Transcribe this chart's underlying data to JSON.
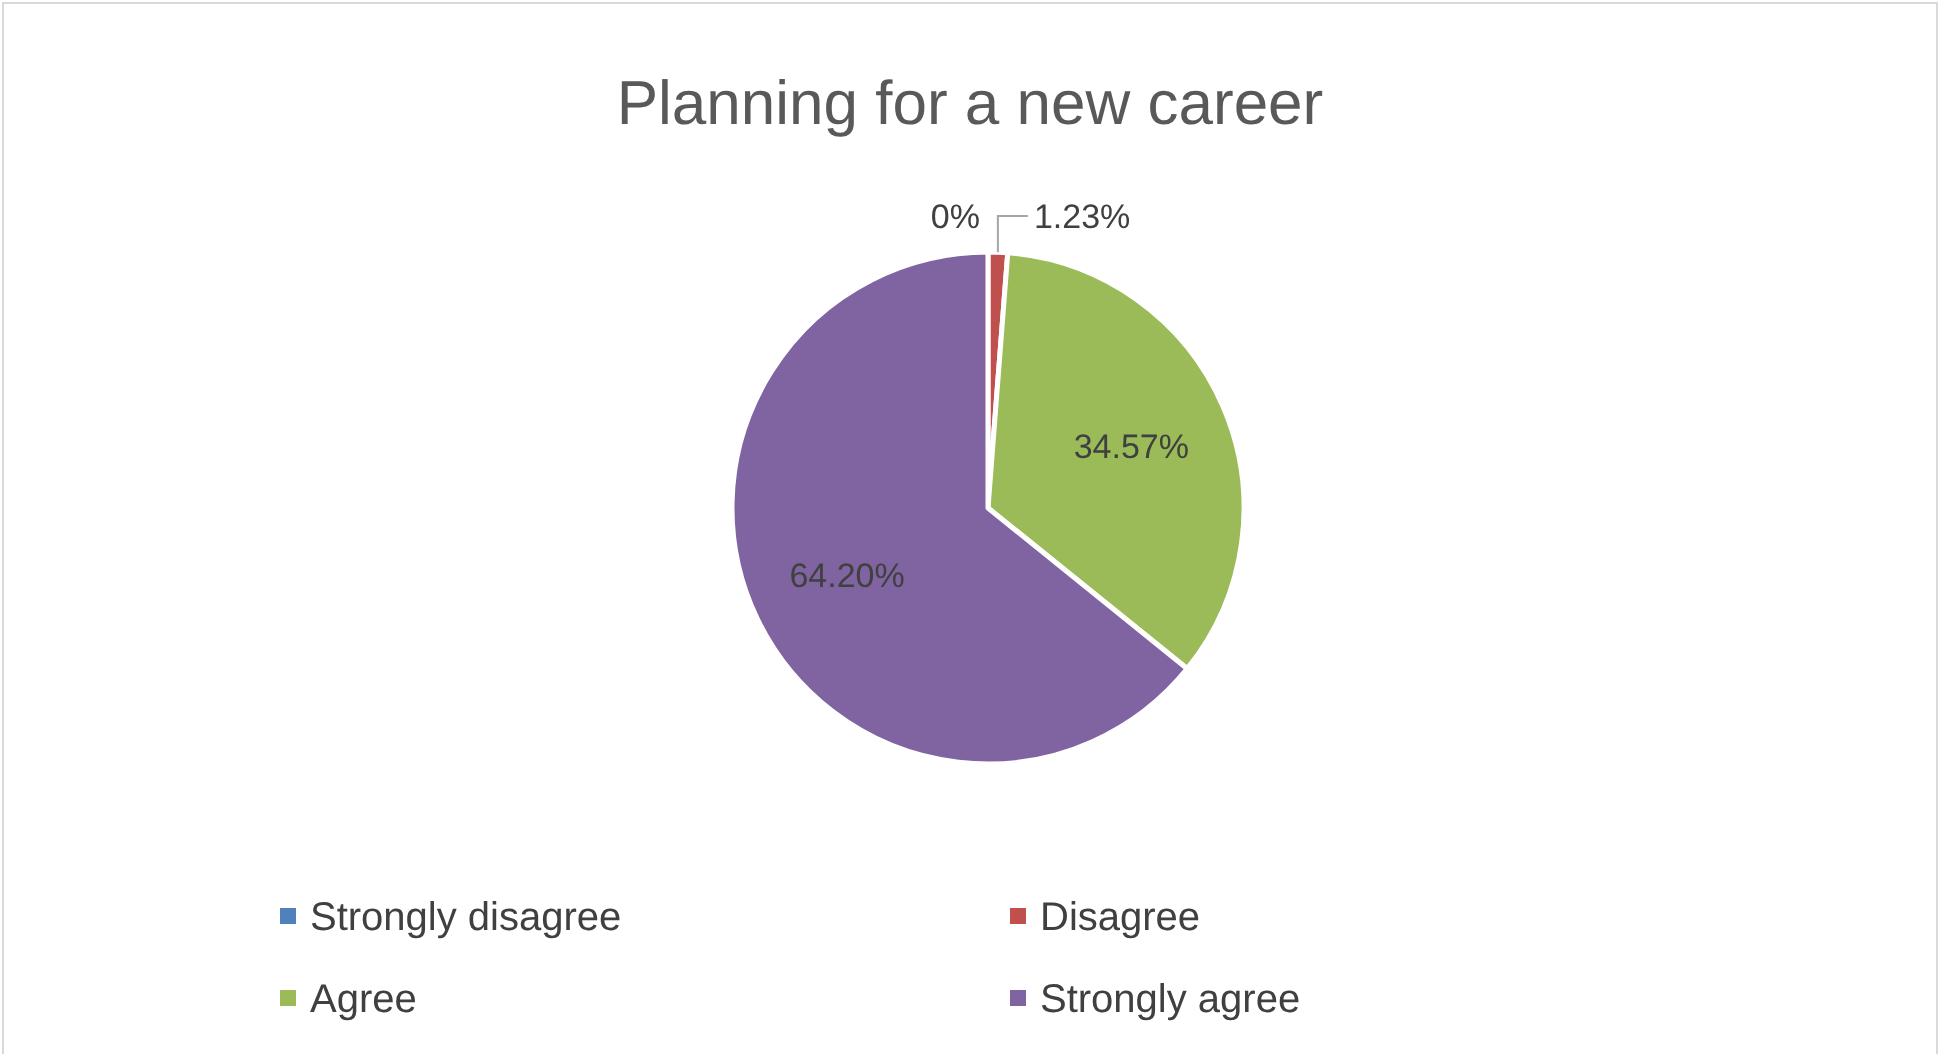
{
  "chart_data": {
    "type": "pie",
    "title": "Planning for a new career",
    "categories": [
      "Strongly disagree",
      "Disagree",
      "Agree",
      "Strongly agree"
    ],
    "values": [
      0,
      1.23,
      34.57,
      64.2
    ],
    "colors": [
      "#4f81bd",
      "#c0504d",
      "#9bbb59",
      "#8064a2"
    ],
    "value_labels": [
      "0%",
      "1.23%",
      "34.57%",
      "64.20%"
    ],
    "legend": "bottom"
  }
}
